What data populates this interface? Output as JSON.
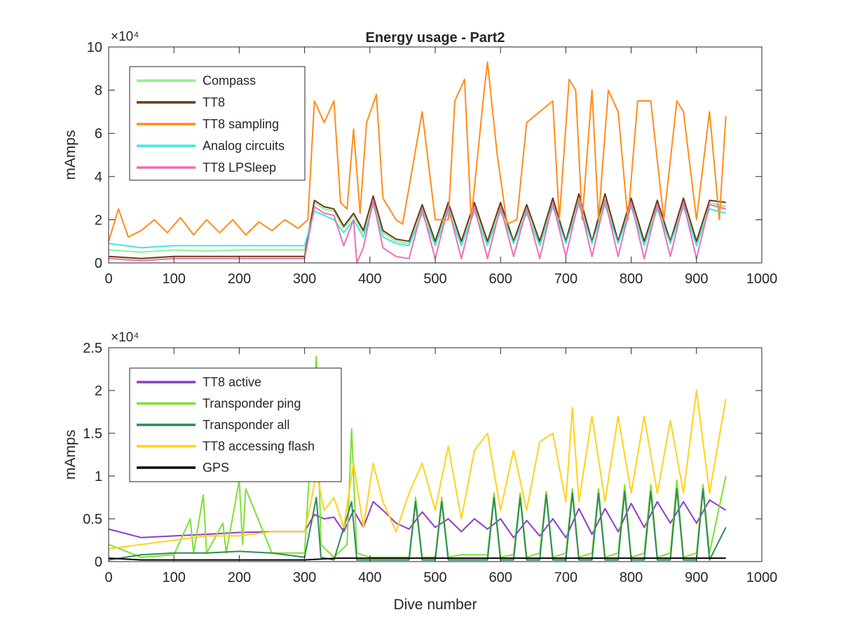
{
  "chart_data": [
    {
      "type": "line",
      "title": "Energy usage - Part2",
      "xlabel": "",
      "ylabel": "mAmps",
      "xlim": [
        0,
        1000
      ],
      "ylim": [
        0,
        10
      ],
      "y_multiplier": "×10⁴",
      "x_ticks": [
        "0",
        "100",
        "200",
        "300",
        "400",
        "500",
        "600",
        "700",
        "800",
        "900",
        "1000"
      ],
      "y_ticks": [
        "0",
        "2",
        "4",
        "6",
        "8",
        "10"
      ],
      "y_tick_values": [
        0,
        2,
        4,
        6,
        8,
        10
      ],
      "grid": false,
      "legend_position": "top-left",
      "series": [
        {
          "name": "Compass",
          "color": "#90ee90",
          "x": [
            0,
            50,
            100,
            150,
            200,
            250,
            300,
            315,
            330,
            345,
            360,
            375,
            390,
            405,
            420,
            440,
            460,
            480,
            500,
            520,
            540,
            560,
            580,
            600,
            620,
            640,
            660,
            680,
            700,
            720,
            740,
            760,
            780,
            800,
            820,
            840,
            860,
            880,
            900,
            920,
            945
          ],
          "y": [
            0.6,
            0.5,
            0.6,
            0.55,
            0.6,
            0.6,
            0.6,
            2.8,
            2.5,
            2.4,
            1.6,
            2.2,
            1.4,
            3.0,
            1.4,
            1.0,
            0.9,
            2.6,
            0.9,
            2.7,
            0.9,
            2.7,
            0.9,
            2.7,
            1.0,
            2.6,
            0.9,
            2.9,
            1.0,
            3.0,
            1.0,
            3.0,
            1.0,
            2.9,
            0.9,
            2.8,
            1.0,
            2.9,
            0.9,
            2.8,
            2.6
          ]
        },
        {
          "name": "TT8",
          "color": "#6b3a12",
          "x": [
            0,
            50,
            100,
            150,
            200,
            250,
            300,
            315,
            330,
            345,
            360,
            375,
            390,
            405,
            420,
            440,
            460,
            480,
            500,
            520,
            540,
            560,
            580,
            600,
            620,
            640,
            660,
            680,
            700,
            720,
            740,
            760,
            780,
            800,
            820,
            840,
            860,
            880,
            900,
            920,
            945
          ],
          "y": [
            0.3,
            0.2,
            0.3,
            0.3,
            0.3,
            0.3,
            0.3,
            2.9,
            2.6,
            2.5,
            1.7,
            2.3,
            1.5,
            3.1,
            1.5,
            1.1,
            1.0,
            2.7,
            1.0,
            2.8,
            1.0,
            2.8,
            1.0,
            2.8,
            1.0,
            2.7,
            1.0,
            3.0,
            1.0,
            3.2,
            1.0,
            3.2,
            1.0,
            3.0,
            1.0,
            2.9,
            1.0,
            3.0,
            1.0,
            2.9,
            2.8
          ]
        },
        {
          "name": "TT8 sampling",
          "color": "#ff8c1a",
          "x": [
            0,
            15,
            30,
            50,
            70,
            90,
            110,
            130,
            150,
            170,
            190,
            210,
            230,
            250,
            270,
            290,
            305,
            315,
            330,
            345,
            355,
            365,
            375,
            385,
            395,
            410,
            420,
            440,
            450,
            460,
            480,
            500,
            520,
            530,
            545,
            555,
            575,
            580,
            595,
            610,
            625,
            640,
            660,
            680,
            690,
            705,
            715,
            725,
            740,
            750,
            765,
            780,
            795,
            810,
            830,
            850,
            870,
            880,
            900,
            920,
            935,
            945
          ],
          "y": [
            1.0,
            2.5,
            1.2,
            1.5,
            2.0,
            1.4,
            2.1,
            1.3,
            2.0,
            1.4,
            2.0,
            1.3,
            1.9,
            1.5,
            2.0,
            1.6,
            2.0,
            7.5,
            6.5,
            7.5,
            2.8,
            2.5,
            6.2,
            2.3,
            6.5,
            7.8,
            3.0,
            2.0,
            1.8,
            3.5,
            7.0,
            2.0,
            2.0,
            7.5,
            8.5,
            2.0,
            8.0,
            9.3,
            5.0,
            1.8,
            2.0,
            6.5,
            7.0,
            7.5,
            2.0,
            8.5,
            8.0,
            2.0,
            8.0,
            2.0,
            8.0,
            7.0,
            2.0,
            7.5,
            7.5,
            2.0,
            7.5,
            7.0,
            2.0,
            7.0,
            2.0,
            6.8
          ]
        },
        {
          "name": "Analog circuits",
          "color": "#40e8e0",
          "x": [
            0,
            50,
            100,
            150,
            200,
            250,
            300,
            315,
            330,
            345,
            360,
            375,
            390,
            405,
            420,
            440,
            460,
            480,
            500,
            520,
            540,
            560,
            580,
            600,
            620,
            640,
            660,
            680,
            700,
            720,
            740,
            760,
            780,
            800,
            820,
            840,
            860,
            880,
            900,
            920,
            945
          ],
          "y": [
            0.9,
            0.7,
            0.8,
            0.8,
            0.8,
            0.8,
            0.8,
            2.4,
            2.2,
            2.0,
            1.4,
            2.0,
            1.2,
            2.7,
            1.2,
            0.9,
            0.8,
            2.3,
            0.8,
            2.4,
            0.8,
            2.4,
            0.8,
            2.4,
            0.9,
            2.3,
            0.8,
            2.6,
            0.9,
            2.7,
            0.9,
            2.7,
            0.9,
            2.6,
            0.8,
            2.5,
            0.9,
            2.6,
            0.8,
            2.5,
            2.3
          ]
        },
        {
          "name": "TT8 LPSleep",
          "color": "#e870b8",
          "x": [
            0,
            50,
            100,
            150,
            200,
            250,
            300,
            315,
            330,
            345,
            360,
            375,
            380,
            390,
            405,
            420,
            440,
            460,
            480,
            500,
            520,
            540,
            560,
            580,
            600,
            620,
            640,
            660,
            680,
            700,
            720,
            740,
            760,
            780,
            800,
            820,
            840,
            860,
            880,
            900,
            920,
            945
          ],
          "y": [
            0.2,
            0.1,
            0.2,
            0.2,
            0.2,
            0.2,
            0.2,
            2.6,
            2.3,
            2.2,
            0.8,
            2.0,
            0.0,
            0.7,
            2.9,
            0.7,
            0.3,
            0.2,
            2.5,
            0.2,
            2.6,
            0.2,
            2.6,
            0.2,
            2.6,
            0.3,
            2.5,
            0.2,
            2.8,
            0.3,
            2.9,
            0.3,
            2.9,
            0.3,
            2.8,
            0.2,
            2.7,
            0.3,
            2.8,
            0.2,
            2.7,
            2.5
          ]
        }
      ]
    },
    {
      "type": "line",
      "title": "",
      "xlabel": "Dive number",
      "ylabel": "mAmps",
      "xlim": [
        0,
        1000
      ],
      "ylim": [
        0,
        2.5
      ],
      "y_multiplier": "×10⁴",
      "x_ticks": [
        "0",
        "100",
        "200",
        "300",
        "400",
        "500",
        "600",
        "700",
        "800",
        "900",
        "1000"
      ],
      "y_ticks": [
        "0",
        "0.5",
        "1",
        "1.5",
        "2",
        "2.5"
      ],
      "y_tick_values": [
        0,
        0.5,
        1,
        1.5,
        2,
        2.5
      ],
      "grid": false,
      "legend_position": "top-left",
      "series": [
        {
          "name": "TT8 active",
          "color": "#8e3cc8",
          "x": [
            0,
            50,
            100,
            150,
            200,
            250,
            300,
            315,
            330,
            345,
            360,
            375,
            390,
            405,
            420,
            440,
            460,
            480,
            500,
            520,
            540,
            560,
            580,
            600,
            620,
            640,
            660,
            680,
            700,
            720,
            740,
            760,
            780,
            800,
            820,
            840,
            860,
            880,
            900,
            920,
            945
          ],
          "y": [
            0.38,
            0.28,
            0.3,
            0.32,
            0.34,
            0.35,
            0.35,
            0.55,
            0.5,
            0.52,
            0.35,
            0.6,
            0.4,
            0.7,
            0.6,
            0.45,
            0.38,
            0.58,
            0.4,
            0.5,
            0.35,
            0.5,
            0.38,
            0.5,
            0.28,
            0.48,
            0.3,
            0.5,
            0.28,
            0.62,
            0.32,
            0.62,
            0.35,
            0.68,
            0.4,
            0.7,
            0.45,
            0.7,
            0.45,
            0.72,
            0.6
          ]
        },
        {
          "name": "Transponder ping",
          "color": "#7ee032",
          "x": [
            0,
            50,
            100,
            125,
            130,
            145,
            150,
            175,
            180,
            200,
            205,
            210,
            250,
            300,
            318,
            325,
            345,
            365,
            372,
            380,
            400,
            420,
            440,
            460,
            470,
            480,
            500,
            510,
            520,
            540,
            560,
            580,
            590,
            600,
            620,
            630,
            640,
            660,
            670,
            680,
            700,
            710,
            720,
            740,
            750,
            760,
            780,
            790,
            800,
            820,
            830,
            840,
            860,
            870,
            880,
            900,
            910,
            920,
            945
          ],
          "y": [
            0.2,
            0.05,
            0.08,
            0.5,
            0.1,
            0.78,
            0.1,
            0.45,
            0.1,
            0.95,
            0.2,
            0.85,
            0.1,
            0.1,
            2.4,
            0.2,
            0.05,
            0.2,
            1.55,
            0.1,
            0.05,
            0.05,
            0.05,
            0.05,
            0.75,
            0.05,
            0.05,
            0.75,
            0.05,
            0.08,
            0.08,
            0.08,
            0.8,
            0.05,
            0.08,
            0.8,
            0.05,
            0.1,
            0.82,
            0.05,
            0.1,
            0.85,
            0.05,
            0.1,
            0.85,
            0.05,
            0.1,
            0.9,
            0.05,
            0.1,
            0.9,
            0.05,
            0.1,
            0.95,
            0.05,
            0.1,
            0.9,
            0.1,
            1.0
          ]
        },
        {
          "name": "Transponder all",
          "color": "#2e8b57",
          "x": [
            0,
            50,
            100,
            150,
            200,
            250,
            300,
            318,
            325,
            345,
            372,
            380,
            400,
            420,
            440,
            460,
            470,
            480,
            500,
            510,
            520,
            540,
            560,
            580,
            590,
            600,
            620,
            630,
            640,
            660,
            670,
            680,
            700,
            710,
            720,
            740,
            750,
            760,
            780,
            790,
            800,
            820,
            830,
            840,
            860,
            870,
            880,
            900,
            910,
            920,
            945
          ],
          "y": [
            0.02,
            0.08,
            0.1,
            0.1,
            0.12,
            0.1,
            0.05,
            0.75,
            0.05,
            0.02,
            0.7,
            0.02,
            0.02,
            0.02,
            0.02,
            0.02,
            0.7,
            0.02,
            0.02,
            0.7,
            0.02,
            0.02,
            0.02,
            0.02,
            0.75,
            0.02,
            0.02,
            0.75,
            0.02,
            0.02,
            0.78,
            0.02,
            0.02,
            0.8,
            0.02,
            0.02,
            0.8,
            0.02,
            0.02,
            0.82,
            0.02,
            0.02,
            0.82,
            0.02,
            0.02,
            0.85,
            0.02,
            0.02,
            0.85,
            0.02,
            0.4
          ]
        },
        {
          "name": "TT8 accessing flash",
          "color": "#ffd21a",
          "x": [
            0,
            50,
            100,
            150,
            200,
            250,
            300,
            310,
            318,
            330,
            345,
            360,
            375,
            390,
            405,
            420,
            440,
            460,
            480,
            500,
            520,
            540,
            560,
            580,
            600,
            620,
            640,
            660,
            680,
            700,
            710,
            720,
            740,
            760,
            780,
            800,
            820,
            840,
            860,
            880,
            900,
            920,
            945
          ],
          "y": [
            0.15,
            0.2,
            0.25,
            0.3,
            0.3,
            0.35,
            0.35,
            0.7,
            1.05,
            0.6,
            0.75,
            0.4,
            1.15,
            0.4,
            1.15,
            0.7,
            0.35,
            0.8,
            1.15,
            0.6,
            1.35,
            0.5,
            1.3,
            1.5,
            0.6,
            1.3,
            0.6,
            1.4,
            1.5,
            0.7,
            1.8,
            0.7,
            1.7,
            0.7,
            1.7,
            0.8,
            1.7,
            0.8,
            1.65,
            0.8,
            2.0,
            0.8,
            1.9
          ]
        },
        {
          "name": "GPS",
          "color": "#000000",
          "x": [
            0,
            50,
            100,
            150,
            200,
            250,
            300,
            350,
            400,
            450,
            500,
            550,
            600,
            650,
            700,
            750,
            800,
            850,
            900,
            945
          ],
          "y": [
            0.04,
            0.02,
            0.02,
            0.02,
            0.02,
            0.02,
            0.02,
            0.04,
            0.04,
            0.04,
            0.04,
            0.04,
            0.04,
            0.04,
            0.04,
            0.04,
            0.04,
            0.04,
            0.04,
            0.04
          ]
        }
      ]
    }
  ]
}
